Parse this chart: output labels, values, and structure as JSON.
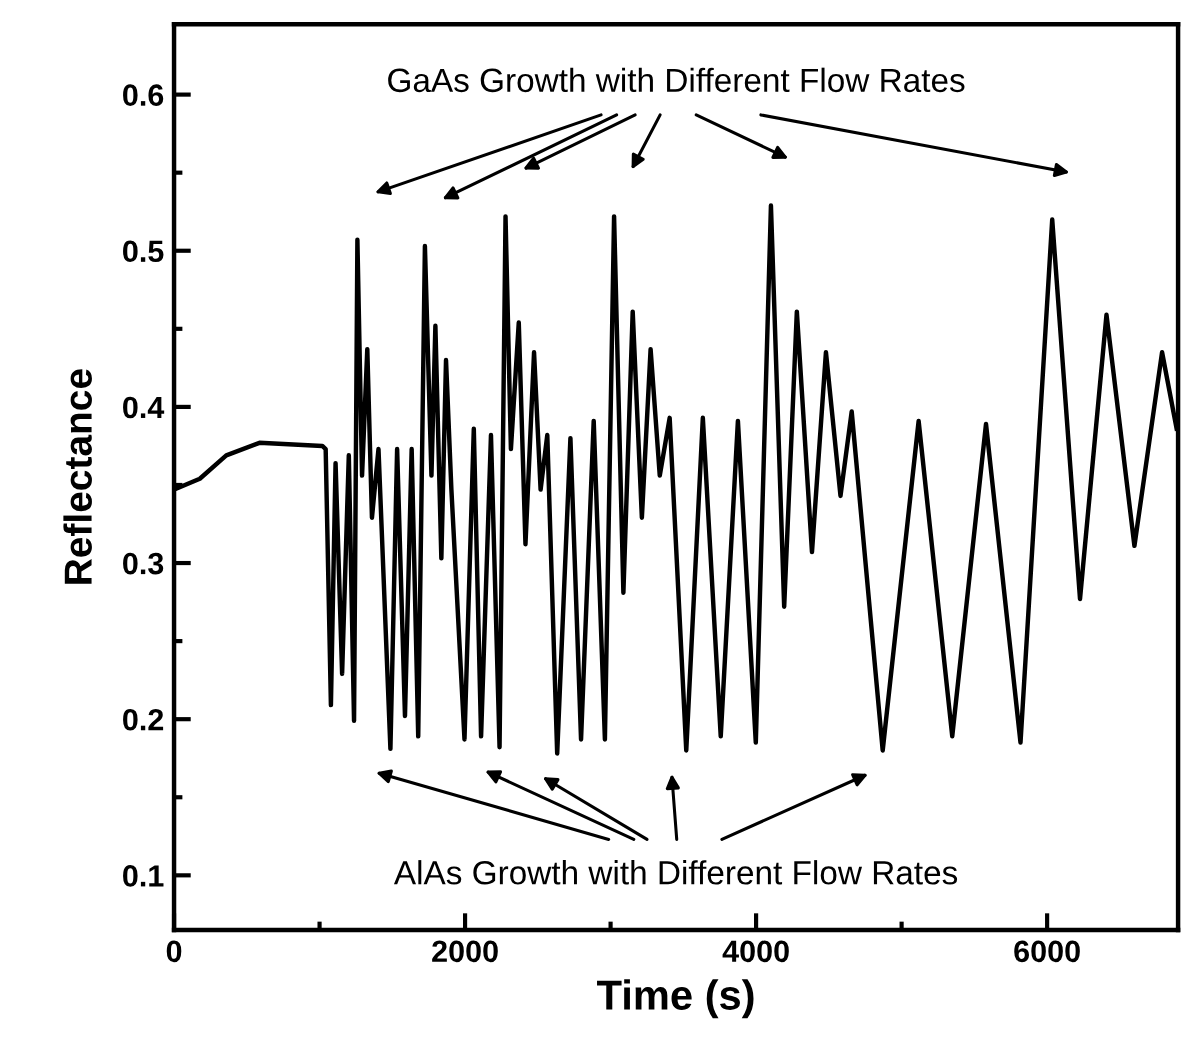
{
  "chart_data": {
    "type": "line",
    "xlabel": "Time (s)",
    "ylabel": "Reflectance",
    "xlim": [
      0,
      6900
    ],
    "ylim": [
      0.065,
      0.645
    ],
    "xticks": [
      0,
      {
        "value": 1000,
        "label": null
      },
      2000,
      {
        "value": 3000,
        "label": null
      },
      4000,
      {
        "value": 5000,
        "label": null
      },
      6000
    ],
    "yticks": [
      0.1,
      {
        "value": 0.15,
        "label": null
      },
      0.2,
      {
        "value": 0.25,
        "label": null
      },
      0.3,
      {
        "value": 0.35,
        "label": null
      },
      0.4,
      {
        "value": 0.45,
        "label": null
      },
      0.5,
      {
        "value": 0.55,
        "label": null
      },
      0.6
    ],
    "grid": false,
    "legend": false,
    "marker": "none",
    "line_style": "solid",
    "annotations": [
      "GaAs Growth with Different Flow Rates",
      "AlAs Growth with Different Flow Rates"
    ],
    "series": [
      {
        "color": "#000000",
        "x": [
          0,
          177,
          359,
          587,
          1019,
          1042,
          1078,
          1110,
          1155,
          1201,
          1237,
          1260,
          1292,
          1328,
          1360,
          1405,
          1487,
          1533,
          1587,
          1633,
          1678,
          1724,
          1769,
          1796,
          1837,
          1869,
          1906,
          1996,
          2060,
          2110,
          2178,
          2237,
          2278,
          2315,
          2369,
          2415,
          2474,
          2519,
          2565,
          2633,
          2724,
          2797,
          2884,
          2961,
          3024,
          3088,
          3152,
          3215,
          3275,
          3338,
          3406,
          3520,
          3634,
          3757,
          3875,
          3998,
          4102,
          4193,
          4280,
          4384,
          4480,
          4580,
          4657,
          4870,
          5117,
          5348,
          5580,
          5817,
          6035,
          6226,
          6408,
          6600,
          6790,
          6890
        ],
        "values": [
          0.347,
          0.354,
          0.369,
          0.377,
          0.375,
          0.373,
          0.209,
          0.364,
          0.229,
          0.369,
          0.199,
          0.507,
          0.356,
          0.437,
          0.329,
          0.373,
          0.181,
          0.373,
          0.202,
          0.373,
          0.189,
          0.503,
          0.356,
          0.452,
          0.303,
          0.43,
          0.347,
          0.187,
          0.386,
          0.189,
          0.382,
          0.182,
          0.522,
          0.373,
          0.454,
          0.312,
          0.435,
          0.347,
          0.382,
          0.178,
          0.38,
          0.187,
          0.391,
          0.187,
          0.522,
          0.281,
          0.461,
          0.329,
          0.437,
          0.356,
          0.393,
          0.18,
          0.393,
          0.189,
          0.391,
          0.185,
          0.529,
          0.272,
          0.461,
          0.307,
          0.435,
          0.343,
          0.397,
          0.18,
          0.391,
          0.189,
          0.389,
          0.185,
          0.52,
          0.277,
          0.459,
          0.311,
          0.435,
          0.386
        ]
      }
    ]
  }
}
